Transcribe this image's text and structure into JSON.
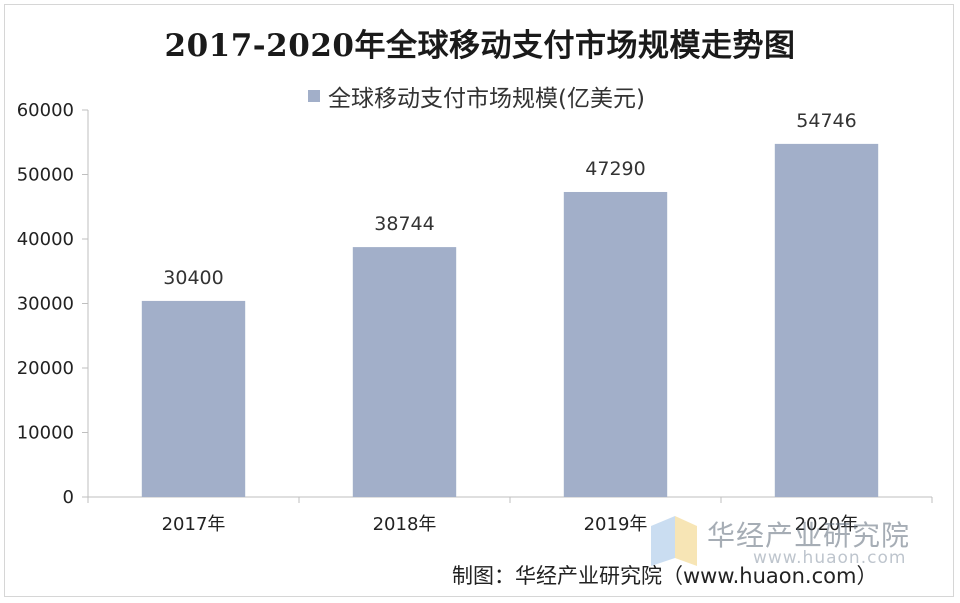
{
  "chart_data": {
    "type": "bar",
    "title": "2017-2020年全球移动支付市场规模走势图",
    "categories": [
      "2017年",
      "2018年",
      "2019年",
      "2020年"
    ],
    "series": [
      {
        "name": "全球移动支付市场规模(亿美元)",
        "values": [
          30400,
          38744,
          47290,
          54746
        ]
      }
    ],
    "data_labels": [
      "30400",
      "38744",
      "47290",
      "54746"
    ],
    "yticks": [
      "0",
      "10000",
      "20000",
      "30000",
      "40000",
      "50000",
      "60000"
    ],
    "ylim": [
      0,
      60000
    ],
    "grid": false,
    "legend_position": "top",
    "bar_color": "#a2afc9"
  },
  "source": "制图：华经产业研究院（www.huaon.com）",
  "watermark": {
    "name": "华经产业研究院",
    "url": "www.huaon.com"
  }
}
